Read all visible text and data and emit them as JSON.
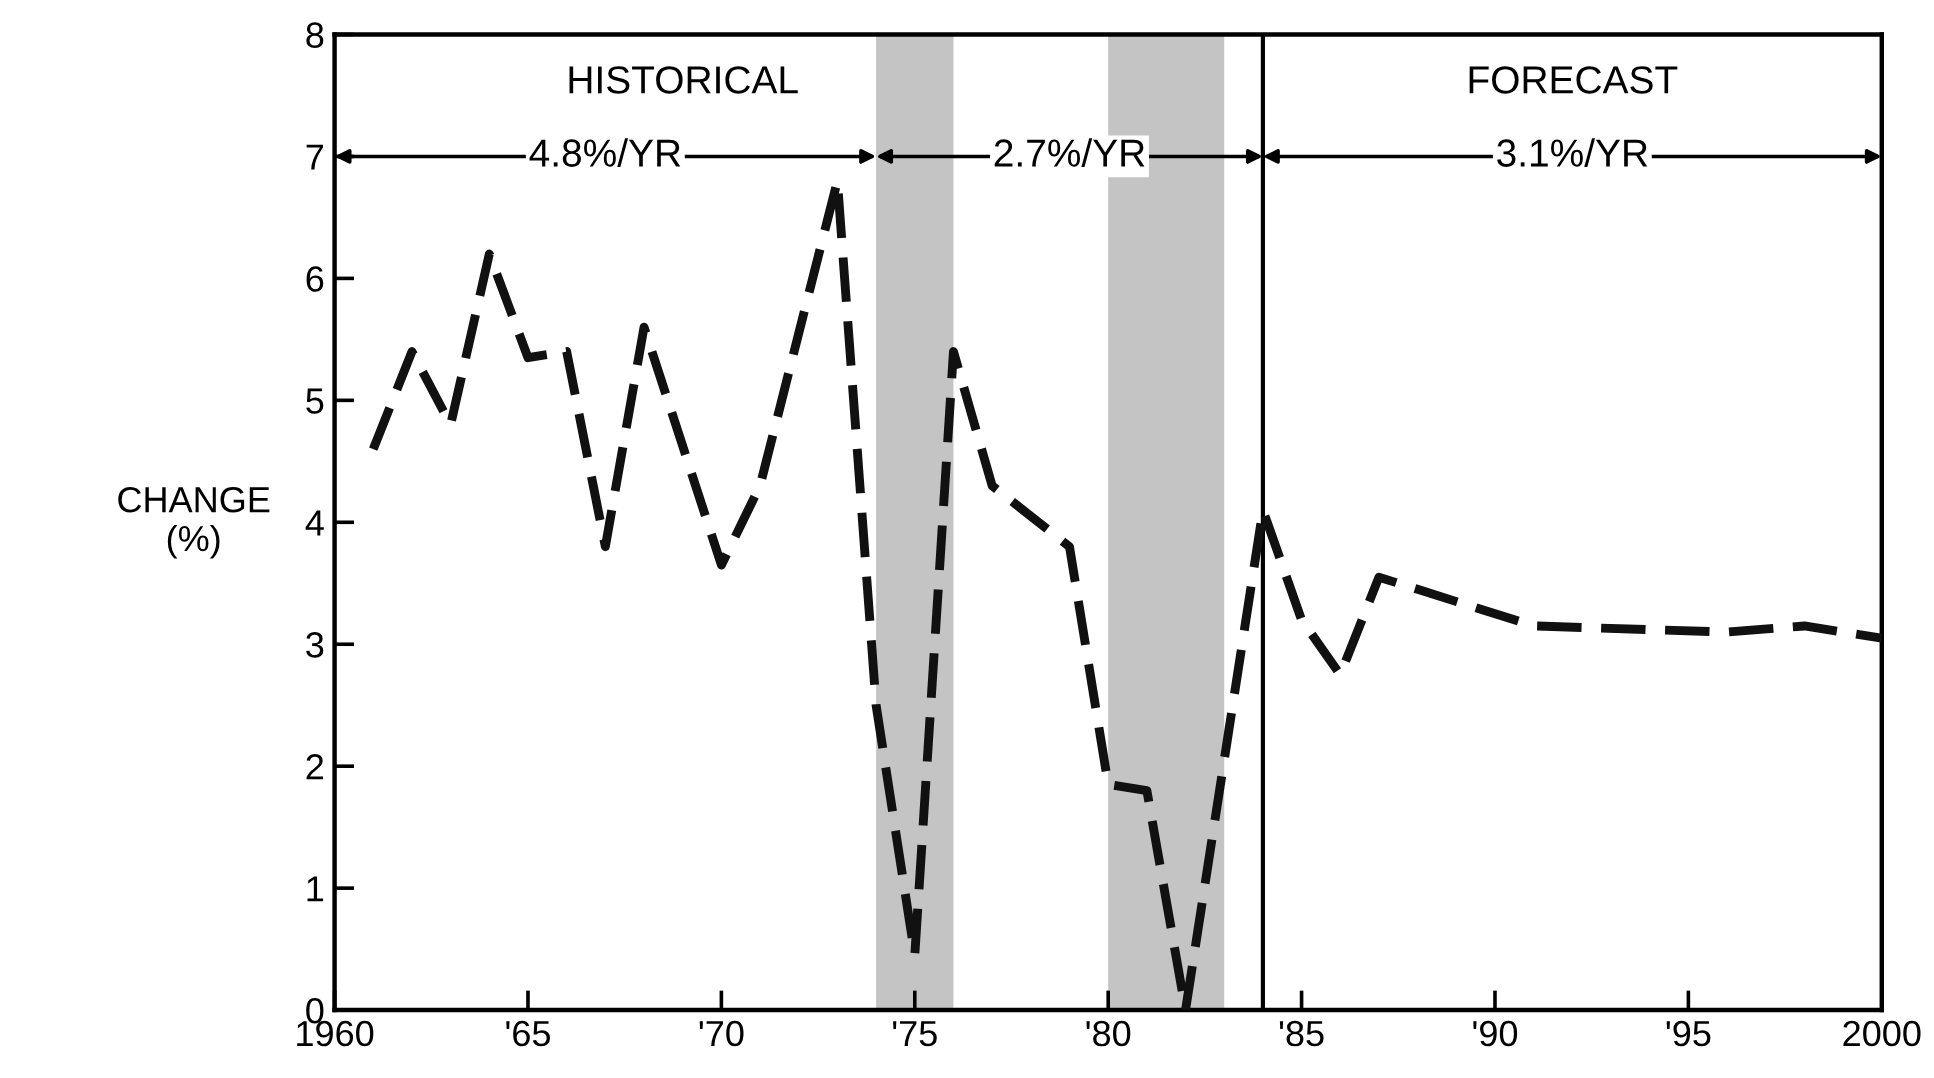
{
  "chart_data": {
    "type": "line",
    "ylabel": "CHANGE\n(%)",
    "x": [
      1961,
      1962,
      1963,
      1964,
      1965,
      1966,
      1967,
      1968,
      1970,
      1971,
      1973,
      1974,
      1975,
      1976,
      1977,
      1979,
      1980,
      1981,
      1982,
      1984,
      1985,
      1986,
      1987,
      1988,
      1991,
      1996,
      1998,
      2000
    ],
    "series": [
      {
        "color": "#111111",
        "values": [
          4.6,
          5.4,
          4.8,
          6.2,
          5.35,
          5.4,
          3.8,
          5.6,
          3.65,
          4.3,
          6.8,
          2.5,
          0.45,
          5.4,
          4.3,
          3.8,
          1.85,
          1.8,
          0.0,
          4.1,
          3.2,
          2.75,
          3.55,
          3.45,
          3.15,
          3.1,
          3.15,
          3.05
        ]
      }
    ],
    "line_style": "dashed",
    "marker": "none",
    "grid": false,
    "legend": false,
    "xlim": [
      1960,
      2000
    ],
    "xticks": [
      1960,
      {
        "value": 1965,
        "label": "'65"
      },
      {
        "value": 1970,
        "label": "'70"
      },
      {
        "value": 1975,
        "label": "'75"
      },
      {
        "value": 1980,
        "label": "'80"
      },
      {
        "value": 1985,
        "label": "'85"
      },
      {
        "value": 1990,
        "label": "'90"
      },
      {
        "value": 1995,
        "label": "'95"
      },
      2000
    ],
    "ylim": [
      0,
      8
    ],
    "yticks": [
      0,
      1,
      2,
      3,
      4,
      5,
      6,
      7,
      8
    ],
    "bands": [
      {
        "axis": "x",
        "from": 1974,
        "to": 1976,
        "color": "#c4c4c4"
      },
      {
        "axis": "x",
        "from": 1980,
        "to": 1983,
        "color": "#c4c4c4"
      }
    ],
    "ref_lines": [
      {
        "axis": "x",
        "value": 1984,
        "color": "#000000",
        "line_style": "solid"
      }
    ],
    "annotations": [
      "HISTORICAL",
      "4.8%/YR",
      "2.7%/YR",
      "FORECAST",
      "3.1%/YR"
    ]
  }
}
